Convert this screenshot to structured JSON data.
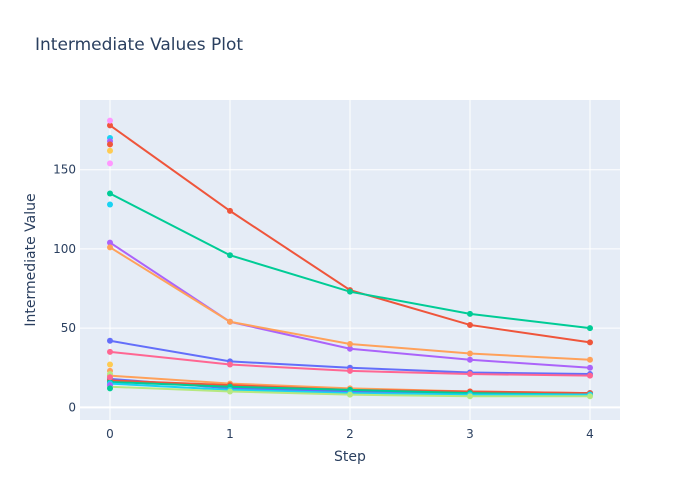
{
  "chart_data": {
    "type": "line",
    "title": "Intermediate Values Plot",
    "xlabel": "Step",
    "ylabel": "Intermediate Value",
    "x": [
      0,
      1,
      2,
      3,
      4
    ],
    "xlim": [
      -0.25,
      4.25
    ],
    "ylim": [
      -8,
      194
    ],
    "xticks": [
      0,
      1,
      2,
      3,
      4
    ],
    "yticks": [
      0,
      50,
      100,
      150
    ],
    "grid": true,
    "legend": false,
    "plot_background": "#e5ecf6",
    "series": [
      {
        "color": "#ef553b",
        "values": [
          178,
          124,
          74,
          52,
          41
        ]
      },
      {
        "color": "#00cc96",
        "values": [
          135,
          96,
          73,
          59,
          50
        ]
      },
      {
        "color": "#ab63fa",
        "values": [
          104,
          54,
          37,
          30,
          25
        ]
      },
      {
        "color": "#ffa15a",
        "values": [
          101,
          54,
          40,
          34,
          30
        ]
      },
      {
        "color": "#636efa",
        "values": [
          42,
          29,
          25,
          22,
          21
        ]
      },
      {
        "color": "#ff6692",
        "values": [
          35,
          27,
          23,
          21,
          20
        ]
      },
      {
        "color": "#ffa15a",
        "values": [
          20,
          15,
          12,
          10,
          9
        ]
      },
      {
        "color": "#636efa",
        "values": [
          18,
          12,
          10,
          9,
          9
        ]
      },
      {
        "color": "#ef553b",
        "values": [
          17,
          14,
          11,
          10,
          9
        ]
      },
      {
        "color": "#00cc96",
        "values": [
          16,
          13,
          11,
          9,
          8
        ]
      },
      {
        "color": "#19d3f3",
        "values": [
          15,
          11,
          9,
          8,
          8
        ]
      },
      {
        "color": "#b6e880",
        "values": [
          13,
          10,
          8,
          7,
          7
        ]
      }
    ],
    "single_points": [
      {
        "x": 0,
        "y": 181,
        "color": "#ff97ff"
      },
      {
        "x": 0,
        "y": 170,
        "color": "#19d3f3"
      },
      {
        "x": 0,
        "y": 168,
        "color": "#ab63fa"
      },
      {
        "x": 0,
        "y": 166,
        "color": "#ef553b"
      },
      {
        "x": 0,
        "y": 162,
        "color": "#fecb52"
      },
      {
        "x": 0,
        "y": 154,
        "color": "#ff97ff"
      },
      {
        "x": 0,
        "y": 128,
        "color": "#19d3f3"
      },
      {
        "x": 0,
        "y": 27,
        "color": "#fecb52"
      },
      {
        "x": 0,
        "y": 23,
        "color": "#ffa15a"
      },
      {
        "x": 0,
        "y": 21,
        "color": "#b6e880"
      },
      {
        "x": 0,
        "y": 19,
        "color": "#ff6692"
      },
      {
        "x": 0,
        "y": 14,
        "color": "#ab63fa"
      },
      {
        "x": 0,
        "y": 12,
        "color": "#00cc96"
      }
    ]
  }
}
